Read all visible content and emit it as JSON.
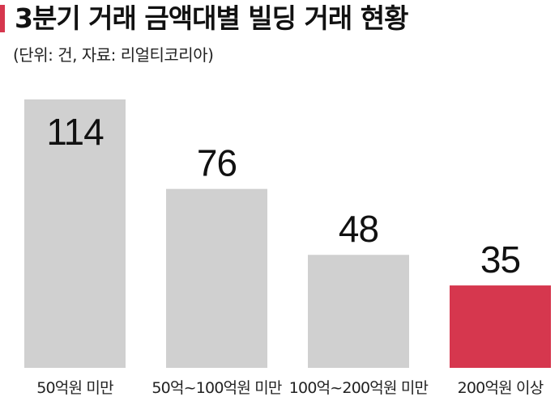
{
  "header": {
    "title": "3분기 거래 금액대별 빌딩 거래 현황",
    "subtitle": "(단위: 건, 자료: 리얼티코리아)",
    "accent_color": "#d6374e"
  },
  "chart_data": {
    "type": "bar",
    "categories": [
      "50억원 미만",
      "50억~100억원 미만",
      "100억~200억원 미만",
      "200억원 이상"
    ],
    "values": [
      114,
      76,
      48,
      35
    ],
    "colors": [
      "#d0d0d0",
      "#d0d0d0",
      "#d0d0d0",
      "#d6374e"
    ],
    "title": "3분기 거래 금액대별 빌딩 거래 현황",
    "xlabel": "",
    "ylabel": "",
    "ylim": [
      0,
      114
    ],
    "grid": false,
    "legend": "none"
  }
}
